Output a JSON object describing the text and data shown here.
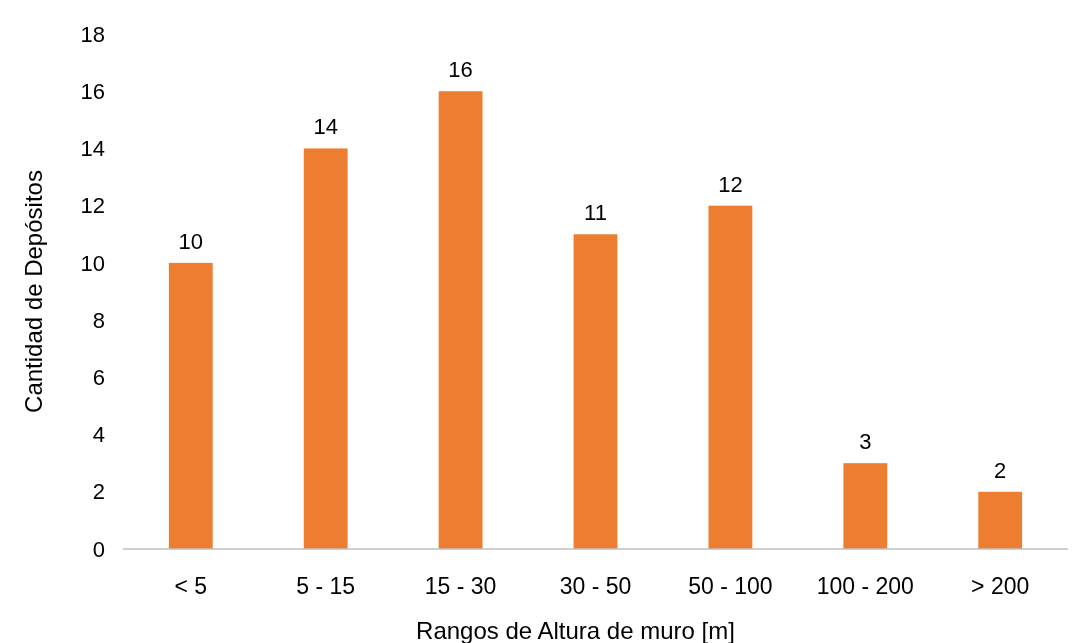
{
  "chart_data": {
    "type": "bar",
    "xlabel": "Rangos de Altura de muro [m]",
    "ylabel": "Cantidad de Depósitos",
    "categories": [
      "< 5",
      "5 - 15",
      "15 - 30",
      "30 - 50",
      "50 - 100",
      "100 - 200",
      "> 200"
    ],
    "values": [
      10,
      14,
      16,
      11,
      12,
      3,
      2
    ],
    "color": "#ed7d31",
    "ylim": [
      0,
      18
    ],
    "yticks": [
      0,
      2,
      4,
      6,
      8,
      10,
      12,
      14,
      16,
      18
    ],
    "grid": false,
    "data_labels": true
  }
}
